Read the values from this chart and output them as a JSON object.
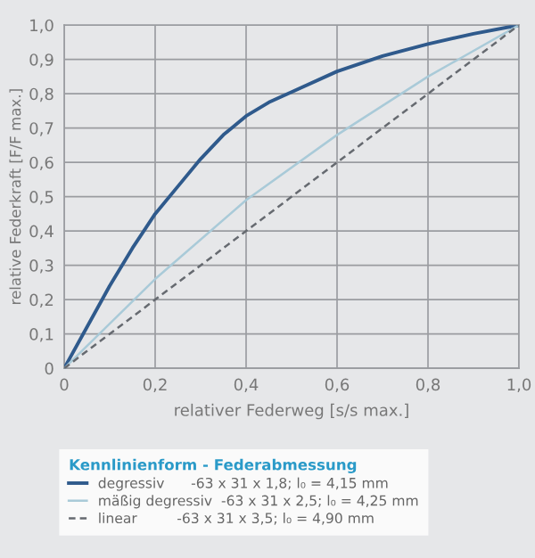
{
  "chart_data": {
    "type": "line",
    "xlabel": "relativer Federweg [s/s max.]",
    "ylabel": "relative Federkraft [F/F max.]",
    "legend_title": "Kennlinienform - Federabmessung",
    "xlim": [
      0,
      1
    ],
    "ylim": [
      0,
      1
    ],
    "xticks": [
      0,
      {
        "value": 0.2,
        "label": "0,2"
      },
      {
        "value": 0.4,
        "label": "0,4"
      },
      {
        "value": 0.6,
        "label": "0,6"
      },
      {
        "value": 0.8,
        "label": "0,8"
      },
      {
        "value": 1,
        "label": "1,0"
      }
    ],
    "yticks": [
      0,
      {
        "value": 0.1,
        "label": "0,1"
      },
      {
        "value": 0.2,
        "label": "0,2"
      },
      {
        "value": 0.3,
        "label": "0,3"
      },
      {
        "value": 0.4,
        "label": "0,4"
      },
      {
        "value": 0.5,
        "label": "0,5"
      },
      {
        "value": 0.6,
        "label": "0,6"
      },
      {
        "value": 0.7,
        "label": "0,7"
      },
      {
        "value": 0.8,
        "label": "0,8"
      },
      {
        "value": 0.9,
        "label": "0,9"
      },
      {
        "value": 1,
        "label": "1,0"
      }
    ],
    "grid": true,
    "legend": "bottom",
    "marker": "none",
    "series": [
      {
        "name": "degressiv      -63 x 31 x 1,8; l₀ = 4,15 mm",
        "color": "#2f5a8c",
        "line_style": "solid",
        "x": [
          0,
          0.05,
          0.1,
          0.15,
          0.2,
          0.25,
          0.3,
          0.35,
          0.4,
          0.45,
          0.5,
          0.6,
          0.7,
          0.8,
          0.9,
          1.0
        ],
        "values": [
          0,
          0.12,
          0.24,
          0.35,
          0.45,
          0.53,
          0.61,
          0.68,
          0.735,
          0.775,
          0.805,
          0.865,
          0.91,
          0.945,
          0.975,
          1.0
        ]
      },
      {
        "name": "mäßig degressiv  -63 x 31 x 2,5; l₀ = 4,25 mm",
        "color": "#a9cad8",
        "line_style": "solid",
        "x": [
          0,
          0.2,
          0.4,
          0.6,
          0.8,
          1.0
        ],
        "values": [
          0,
          0.26,
          0.49,
          0.68,
          0.85,
          1.0
        ]
      },
      {
        "name": "linear         -63 x 31 x 3,5; l₀ = 4,90 mm",
        "color": "#666a70",
        "line_style": "dashed",
        "x": [
          0,
          1.0
        ],
        "values": [
          0,
          1.0
        ]
      }
    ]
  }
}
